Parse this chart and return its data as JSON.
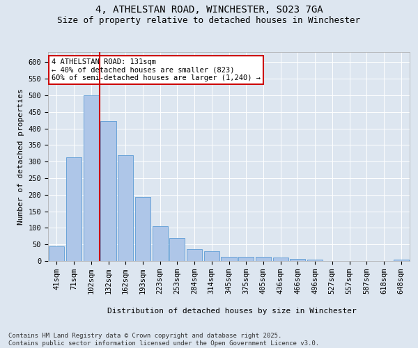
{
  "title_line1": "4, ATHELSTAN ROAD, WINCHESTER, SO23 7GA",
  "title_line2": "Size of property relative to detached houses in Winchester",
  "xlabel": "Distribution of detached houses by size in Winchester",
  "ylabel": "Number of detached properties",
  "categories": [
    "41sqm",
    "71sqm",
    "102sqm",
    "132sqm",
    "162sqm",
    "193sqm",
    "223sqm",
    "253sqm",
    "284sqm",
    "314sqm",
    "345sqm",
    "375sqm",
    "405sqm",
    "436sqm",
    "466sqm",
    "496sqm",
    "527sqm",
    "557sqm",
    "587sqm",
    "618sqm",
    "648sqm"
  ],
  "values": [
    45,
    313,
    500,
    422,
    320,
    193,
    105,
    70,
    35,
    30,
    12,
    12,
    12,
    10,
    7,
    4,
    1,
    1,
    1,
    1,
    4
  ],
  "bar_color": "#aec6e8",
  "bar_edgecolor": "#5b9bd5",
  "vline_color": "#cc0000",
  "annotation_text": "4 ATHELSTAN ROAD: 131sqm\n← 40% of detached houses are smaller (823)\n60% of semi-detached houses are larger (1,240) →",
  "annotation_box_edgecolor": "#cc0000",
  "ylim": [
    0,
    630
  ],
  "yticks": [
    0,
    50,
    100,
    150,
    200,
    250,
    300,
    350,
    400,
    450,
    500,
    550,
    600
  ],
  "footnote": "Contains HM Land Registry data © Crown copyright and database right 2025.\nContains public sector information licensed under the Open Government Licence v3.0.",
  "background_color": "#dde6f0",
  "plot_background": "#dde6f0",
  "title_fontsize": 10,
  "subtitle_fontsize": 9,
  "axis_label_fontsize": 8,
  "tick_fontsize": 7.5,
  "footnote_fontsize": 6.5
}
